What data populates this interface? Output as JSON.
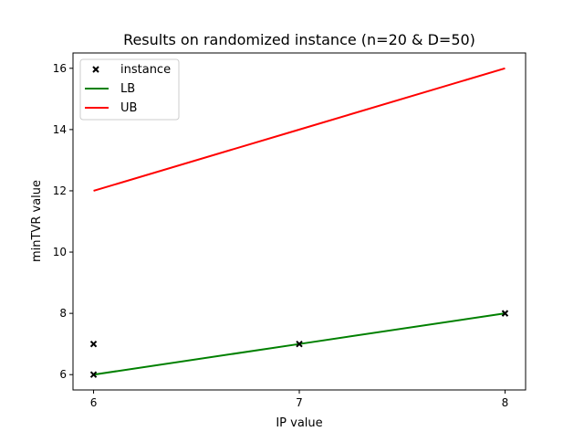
{
  "chart_data": {
    "type": "line",
    "title": "Results on randomized instance (n=20 & D=50)",
    "xlabel": "IP value",
    "ylabel": "minTVR value",
    "xlim": [
      5.9,
      8.1
    ],
    "ylim": [
      5.5,
      16.5
    ],
    "xticks": [
      6,
      7,
      8
    ],
    "yticks": [
      6,
      8,
      10,
      12,
      14,
      16
    ],
    "grid": false,
    "legend_position": "upper-left",
    "series": [
      {
        "name": "instance",
        "kind": "scatter",
        "marker": "x",
        "color": "#000000",
        "points": [
          [
            6,
            6
          ],
          [
            6,
            7
          ],
          [
            7,
            7
          ],
          [
            8,
            8
          ]
        ]
      },
      {
        "name": "LB",
        "kind": "line",
        "color": "#008000",
        "x": [
          6,
          7,
          8
        ],
        "y": [
          6,
          7,
          8
        ]
      },
      {
        "name": "UB",
        "kind": "line",
        "color": "#ff0000",
        "x": [
          6,
          7,
          8
        ],
        "y": [
          12,
          14,
          16
        ]
      }
    ]
  }
}
